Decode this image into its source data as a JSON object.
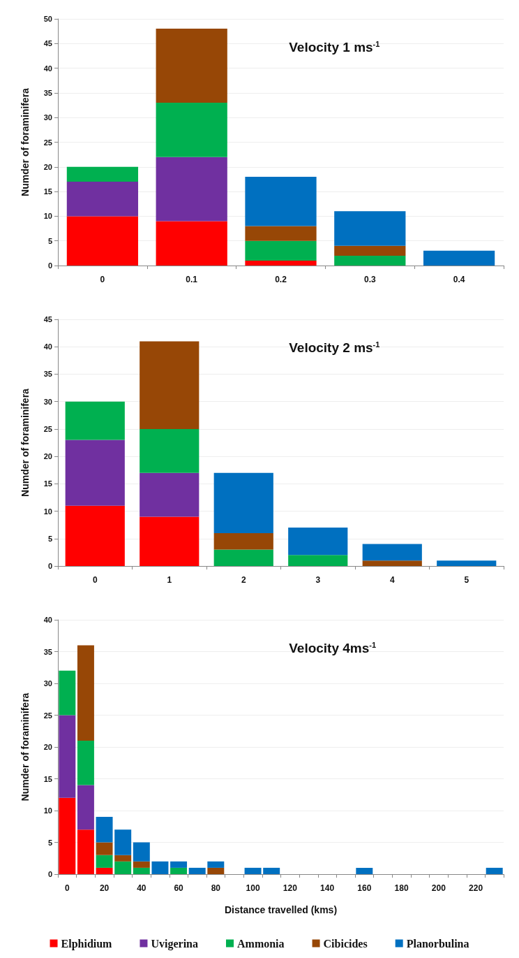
{
  "chart_data": [
    {
      "type": "bar",
      "title": "Velocity 1 ms$^{-1}$",
      "ylabel": "Numder of foraminifera",
      "stacked": true,
      "grid": "y",
      "legend": false,
      "categories": [
        "0",
        "0.1",
        "0.2",
        "0.3",
        "0.4"
      ],
      "ylim": [
        0,
        50
      ],
      "yticks": [
        0,
        5,
        10,
        15,
        20,
        25,
        30,
        35,
        40,
        45,
        50
      ],
      "series": [
        {
          "color": "#ff0000",
          "values": [
            10,
            9,
            1,
            0,
            0
          ]
        },
        {
          "color": "#7030a0",
          "values": [
            7,
            13,
            0,
            0,
            0
          ]
        },
        {
          "color": "#00b050",
          "values": [
            3,
            11,
            4,
            2,
            0
          ]
        },
        {
          "color": "#974706",
          "values": [
            0,
            15,
            3,
            2,
            0
          ]
        },
        {
          "color": "#0070c0",
          "values": [
            0,
            0,
            10,
            7,
            3
          ]
        }
      ]
    },
    {
      "type": "bar",
      "title": "Velocity 2 ms$^{-1}$",
      "ylabel": "Numder of foraminifera",
      "stacked": true,
      "grid": "y",
      "legend": false,
      "categories": [
        "0",
        "1",
        "2",
        "3",
        "4",
        "5"
      ],
      "ylim": [
        0,
        45
      ],
      "yticks": [
        0,
        5,
        10,
        15,
        20,
        25,
        30,
        35,
        40,
        45
      ],
      "series": [
        {
          "color": "#ff0000",
          "values": [
            11,
            9,
            0,
            0,
            0,
            0
          ]
        },
        {
          "color": "#7030a0",
          "values": [
            12,
            8,
            0,
            0,
            0,
            0
          ]
        },
        {
          "color": "#00b050",
          "values": [
            7,
            8,
            3,
            2,
            0,
            0
          ]
        },
        {
          "color": "#974706",
          "values": [
            0,
            16,
            3,
            0,
            1,
            0
          ]
        },
        {
          "color": "#0070c0",
          "values": [
            0,
            0,
            11,
            5,
            3,
            1
          ]
        }
      ]
    },
    {
      "type": "bar",
      "title": "Velocity 4ms$^{-1}$",
      "ylabel": "Numder of foraminifera",
      "xlabel": "Distance travelled (kms)",
      "stacked": true,
      "grid": "y",
      "legend": "bottom",
      "categories": [
        "0",
        null,
        "20",
        null,
        "40",
        null,
        "60",
        null,
        "80",
        null,
        "100",
        null,
        "120",
        null,
        "140",
        null,
        "160",
        null,
        "180",
        null,
        "200",
        null,
        "220",
        null
      ],
      "ylim": [
        0,
        40
      ],
      "yticks": [
        0,
        5,
        10,
        15,
        20,
        25,
        30,
        35,
        40
      ],
      "series": [
        {
          "name": "Elphidium",
          "color": "#ff0000",
          "values": [
            12,
            7,
            1,
            0,
            0,
            0,
            0,
            0,
            0,
            0,
            0,
            0,
            0,
            0,
            0,
            0,
            0,
            0,
            0,
            0,
            0,
            0,
            0,
            0
          ]
        },
        {
          "name": "Uvigerina",
          "color": "#7030a0",
          "values": [
            13,
            7,
            0,
            0,
            0,
            0,
            0,
            0,
            0,
            0,
            0,
            0,
            0,
            0,
            0,
            0,
            0,
            0,
            0,
            0,
            0,
            0,
            0,
            0
          ]
        },
        {
          "name": "Ammonia",
          "color": "#00b050",
          "values": [
            7,
            7,
            2,
            2,
            1,
            0,
            1,
            0,
            0,
            0,
            0,
            0,
            0,
            0,
            0,
            0,
            0,
            0,
            0,
            0,
            0,
            0,
            0,
            0
          ]
        },
        {
          "name": "Cibicides",
          "color": "#974706",
          "values": [
            0,
            15,
            2,
            1,
            1,
            0,
            0,
            0,
            1,
            0,
            0,
            0,
            0,
            0,
            0,
            0,
            0,
            0,
            0,
            0,
            0,
            0,
            0,
            0
          ]
        },
        {
          "name": "Planorbulina",
          "color": "#0070c0",
          "values": [
            0,
            0,
            4,
            4,
            3,
            2,
            1,
            1,
            1,
            0,
            1,
            1,
            0,
            0,
            0,
            0,
            1,
            0,
            0,
            0,
            0,
            0,
            0,
            1
          ]
        }
      ]
    }
  ]
}
